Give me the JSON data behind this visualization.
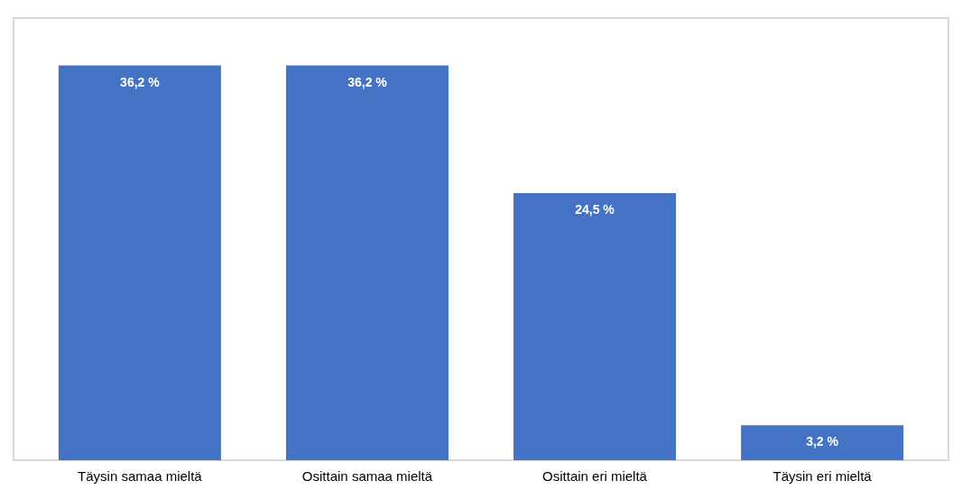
{
  "chart_data": {
    "type": "bar",
    "categories": [
      "Täysin samaa mieltä",
      "Osittain samaa mieltä",
      "Osittain eri mieltä",
      "Täysin eri mieltä"
    ],
    "values": [
      36.2,
      36.2,
      24.5,
      3.2
    ],
    "value_labels": [
      "36,2 %",
      "36,2 %",
      "24,5 %",
      "3,2 %"
    ],
    "color": "#4472c4"
  }
}
